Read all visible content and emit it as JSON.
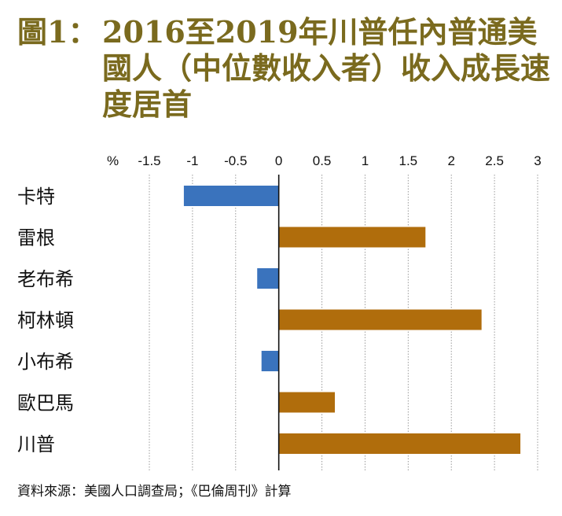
{
  "title": {
    "prefix": "圖1：",
    "text": "2016至2019年川普任內普通美國人（中位數收入者）收入成長速度居首"
  },
  "source": "資料來源：美國人口調查局；《巴倫周刊》計算",
  "colors": {
    "negative": "#3a73bd",
    "positive": "#b06d0c",
    "title": "#7a6a1e"
  },
  "chart_data": {
    "type": "bar",
    "orientation": "horizontal",
    "title": "2016至2019年川普任內普通美國人（中位數收入者）收入成長速度居首",
    "unit_label": "%",
    "xlim": [
      -1.5,
      3
    ],
    "x_ticks": [
      "-1.5",
      "-1",
      "-0.5",
      "0",
      "0.5",
      "1",
      "1.5",
      "2",
      "2.5",
      "3"
    ],
    "x_tick_values": [
      -1.5,
      -1,
      -0.5,
      0,
      0.5,
      1,
      1.5,
      2,
      2.5,
      3
    ],
    "categories": [
      "卡特",
      "雷根",
      "老布希",
      "柯林頓",
      "小布希",
      "歐巴馬",
      "川普"
    ],
    "values": [
      -1.1,
      1.7,
      -0.25,
      2.35,
      -0.2,
      0.65,
      2.8
    ],
    "grid": true,
    "legend": "none"
  }
}
